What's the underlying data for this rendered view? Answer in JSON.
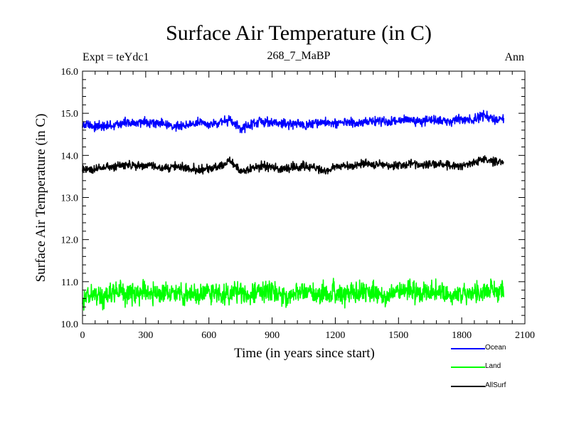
{
  "header": {
    "expt": "Expt = teYdc1",
    "run": "268_7_MaBP",
    "period": "Ann"
  },
  "chart_data": {
    "type": "line",
    "title": "Surface Air Temperature (in C)",
    "xlabel": "Time (in years since start)",
    "ylabel": "Surface Air Temperature (in C)",
    "xlim": [
      0,
      2100
    ],
    "ylim": [
      10.0,
      16.0
    ],
    "xticks": [
      "0",
      "300",
      "600",
      "900",
      "1200",
      "1500",
      "1800",
      "2100"
    ],
    "yticks": [
      "10.0",
      "11.0",
      "12.0",
      "13.0",
      "14.0",
      "15.0",
      "16.0"
    ],
    "x_step_years": 50,
    "series": [
      {
        "name": "Ocean",
        "color": "#0000ff",
        "noise": 0.08,
        "values": [
          14.74,
          14.7,
          14.68,
          14.72,
          14.78,
          14.75,
          14.8,
          14.78,
          14.72,
          14.7,
          14.74,
          14.77,
          14.73,
          14.79,
          14.83,
          14.62,
          14.75,
          14.8,
          14.77,
          14.76,
          14.74,
          14.72,
          14.75,
          14.8,
          14.76,
          14.78,
          14.74,
          14.8,
          14.82,
          14.78,
          14.84,
          14.86,
          14.8,
          14.85,
          14.83,
          14.79,
          14.86,
          14.84,
          14.95,
          14.87,
          14.85
        ]
      },
      {
        "name": "Land",
        "color": "#00ff00",
        "noise": 0.18,
        "values": [
          10.65,
          10.7,
          10.62,
          10.78,
          10.75,
          10.7,
          10.82,
          10.68,
          10.72,
          10.75,
          10.7,
          10.68,
          10.78,
          10.66,
          10.72,
          10.8,
          10.7,
          10.74,
          10.76,
          10.68,
          10.7,
          10.78,
          10.66,
          10.7,
          10.74,
          10.68,
          10.76,
          10.78,
          10.72,
          10.66,
          10.74,
          10.8,
          10.7,
          10.75,
          10.73,
          10.7,
          10.68,
          10.72,
          10.74,
          10.78,
          10.76
        ]
      },
      {
        "name": "AllSurf",
        "color": "#000000",
        "noise": 0.07,
        "values": [
          13.68,
          13.66,
          13.7,
          13.72,
          13.78,
          13.74,
          13.76,
          13.72,
          13.7,
          13.74,
          13.72,
          13.66,
          13.7,
          13.74,
          13.86,
          13.62,
          13.68,
          13.74,
          13.72,
          13.7,
          13.73,
          13.75,
          13.7,
          13.62,
          13.72,
          13.74,
          13.76,
          13.8,
          13.78,
          13.75,
          13.77,
          13.8,
          13.76,
          13.79,
          13.82,
          13.75,
          13.78,
          13.8,
          13.9,
          13.85,
          13.86
        ]
      }
    ]
  }
}
